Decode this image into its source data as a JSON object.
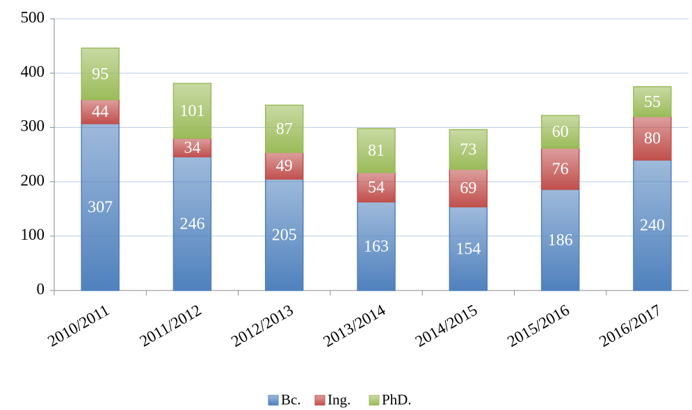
{
  "chart_data": {
    "type": "stacked_bar",
    "categories": [
      "2010/2011",
      "2011/2012",
      "2012/2013",
      "2013/2014",
      "2014/2015",
      "2015/2016",
      "2016/2017"
    ],
    "series": [
      {
        "name": "Bc.",
        "color": "#4f81bd",
        "values": [
          307,
          246,
          205,
          163,
          154,
          186,
          240
        ]
      },
      {
        "name": "Ing.",
        "color": "#c0504d",
        "values": [
          44,
          34,
          49,
          54,
          69,
          76,
          80
        ]
      },
      {
        "name": "PhD.",
        "color": "#9bbb59",
        "values": [
          95,
          101,
          87,
          81,
          73,
          60,
          55
        ]
      }
    ],
    "ylim": [
      0,
      500
    ],
    "yticks": [
      0,
      100,
      200,
      300,
      400,
      500
    ],
    "grid": true,
    "legend": "bottom"
  }
}
